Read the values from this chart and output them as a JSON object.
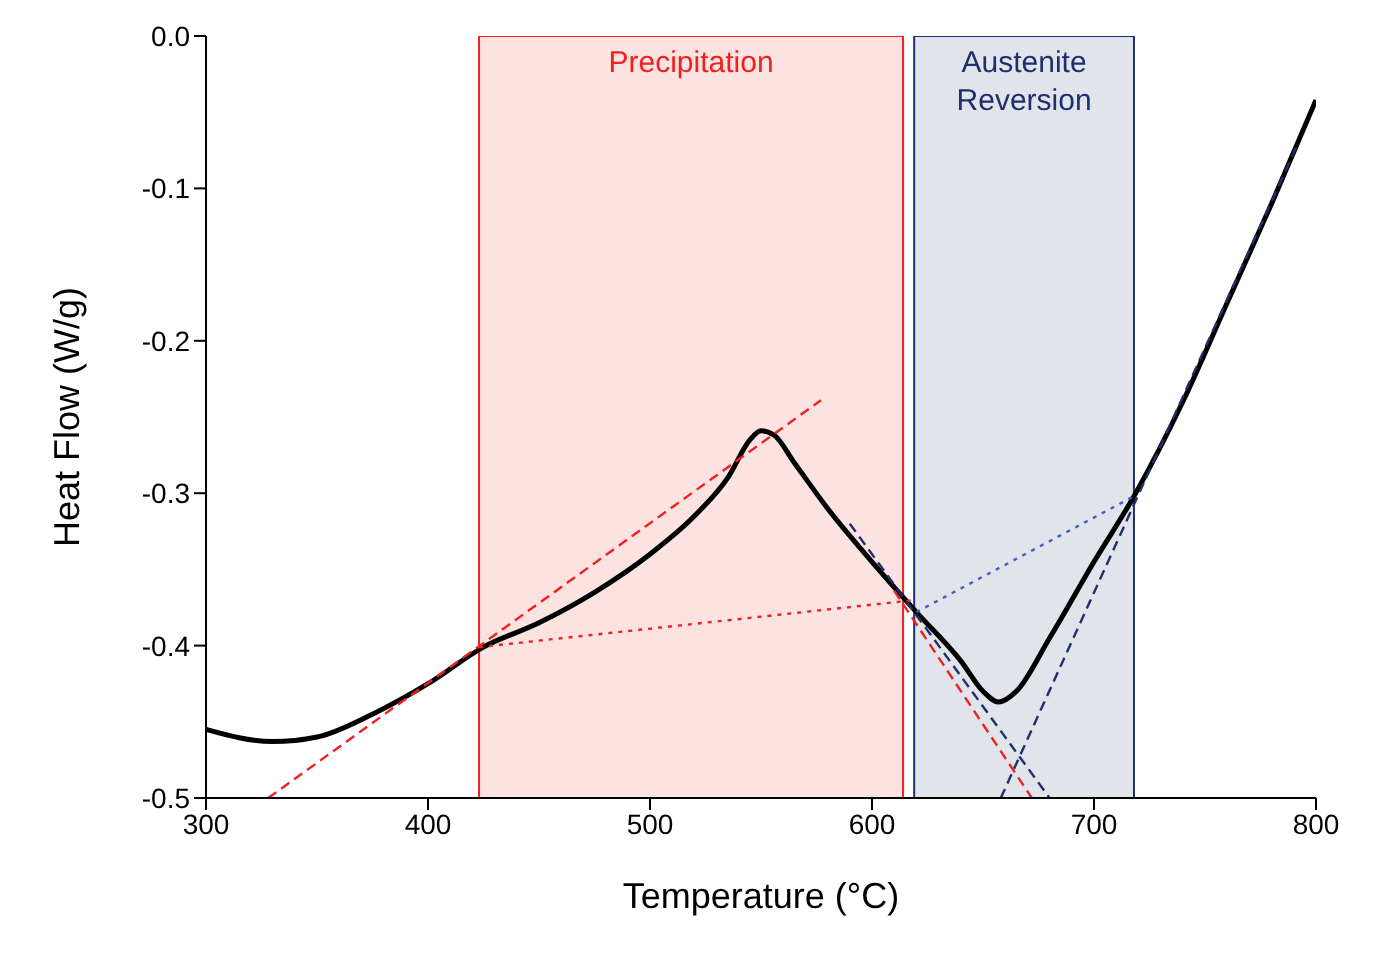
{
  "chart_data": {
    "type": "line",
    "xlabel": "Temperature (°C)",
    "ylabel": "Heat Flow (W/g)",
    "xlim": [
      300,
      800
    ],
    "xticks": [
      300,
      400,
      500,
      600,
      700,
      800
    ],
    "ylim": [
      -0.5,
      0
    ],
    "yticks": [
      {
        "value": -0.5,
        "label": "-0.5"
      },
      {
        "value": -0.4,
        "label": "-0.4"
      },
      {
        "value": -0.3,
        "label": "-0.3"
      },
      {
        "value": -0.2,
        "label": "-0.2"
      },
      {
        "value": -0.1,
        "label": "-0.1"
      },
      {
        "value": 0,
        "label": "0.0"
      }
    ],
    "grid": false,
    "marker": "none",
    "bands": [
      {
        "axis": "x",
        "from": 423,
        "to": 614,
        "label": "Precipitation",
        "color": "#f02020"
      },
      {
        "axis": "x",
        "from": 619,
        "to": 718,
        "label": "Austenite Reversion",
        "color": "#1f2f6b"
      }
    ],
    "series": [
      {
        "color": "#000000",
        "line_style": "solid",
        "x": [
          300,
          330,
          350,
          375,
          400,
          425,
          450,
          475,
          500,
          520,
          535,
          545,
          550,
          556,
          565,
          580,
          600,
          620,
          640,
          650,
          657,
          665,
          680,
          700,
          718,
          740,
          760,
          780,
          800
        ],
        "values": [
          -0.455,
          -0.463,
          -0.46,
          -0.445,
          -0.425,
          -0.401,
          -0.385,
          -0.365,
          -0.34,
          -0.315,
          -0.29,
          -0.265,
          -0.259,
          -0.262,
          -0.28,
          -0.31,
          -0.345,
          -0.378,
          -0.41,
          -0.43,
          -0.437,
          -0.43,
          -0.395,
          -0.345,
          -0.302,
          -0.24,
          -0.175,
          -0.11,
          -0.042
        ]
      },
      {
        "color": "#f02020",
        "line_style": "dashed",
        "x": [
          328,
          577
        ],
        "values": [
          -0.5,
          -0.239
        ]
      },
      {
        "color": "#f02020",
        "line_style": "dotted",
        "x": [
          423,
          620
        ],
        "values": [
          -0.401,
          -0.37
        ]
      },
      {
        "color": "#f02020",
        "line_style": "dashed",
        "x": [
          610,
          672
        ],
        "values": [
          -0.364,
          -0.5
        ]
      },
      {
        "color": "#1f2f6b",
        "line_style": "dashed",
        "x": [
          590,
          680
        ],
        "values": [
          -0.32,
          -0.5
        ]
      },
      {
        "color": "#1f2f6b",
        "line_style": "dashed",
        "x": [
          658,
          792
        ],
        "values": [
          -0.5,
          -0.07
        ]
      },
      {
        "color": "#4060c0",
        "line_style": "dotted",
        "x": [
          620,
          718
        ],
        "values": [
          -0.378,
          -0.302
        ]
      }
    ]
  }
}
